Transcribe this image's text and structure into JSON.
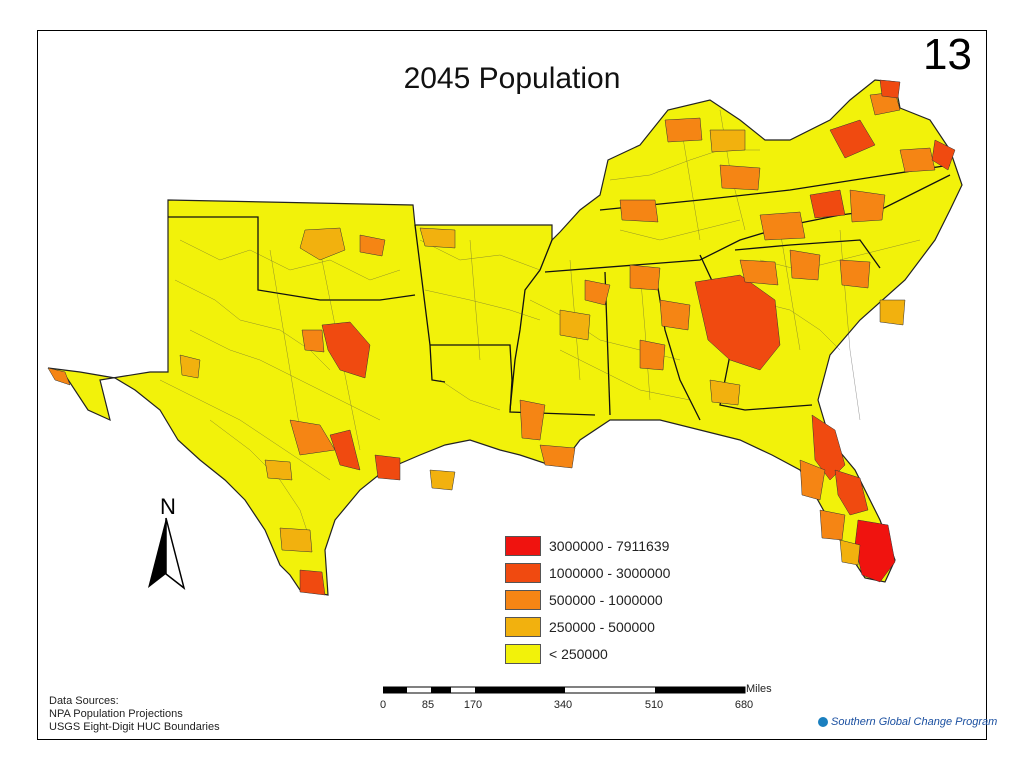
{
  "map": {
    "title": "2045 Population",
    "slide_number": "13",
    "north_label": "N",
    "legend": [
      {
        "label": "3000000 - 7911639",
        "color": "#f0130f"
      },
      {
        "label": "1000000 - 3000000",
        "color": "#f04a10"
      },
      {
        "label": "500000 - 1000000",
        "color": "#f58514"
      },
      {
        "label": "250000 - 500000",
        "color": "#f2b10e"
      },
      {
        "label": "< 250000",
        "color": "#f2f20a"
      }
    ],
    "scale": {
      "unit": "Miles",
      "ticks": [
        "0",
        "85",
        "170",
        "340",
        "510",
        "680"
      ]
    },
    "sources": {
      "heading": "Data Sources:",
      "lines": [
        "NPA Population Projections",
        "USGS Eight-Digit HUC Boundaries"
      ]
    },
    "brand": "Southern Global Change Program",
    "colors": {
      "base": "#f2f20a",
      "low_mid": "#f2b10e",
      "mid": "#f58514",
      "high": "#f04a10",
      "top": "#f0130f"
    }
  }
}
